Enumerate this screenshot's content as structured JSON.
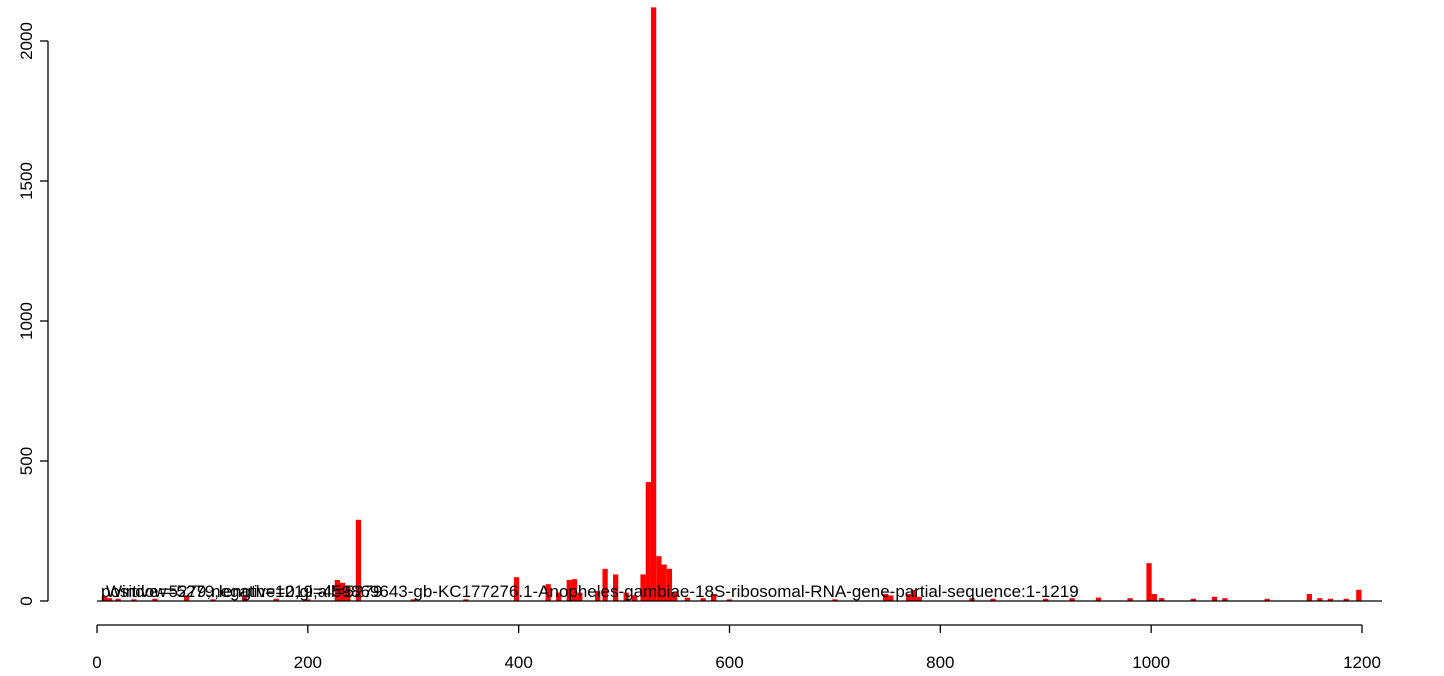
{
  "chart_data": {
    "type": "bar",
    "title": "",
    "xlabel": "",
    "ylabel": "",
    "xlim": [
      0,
      1219
    ],
    "ylim": [
      0,
      2120
    ],
    "x_ticks": [
      "0",
      "200",
      "400",
      "600",
      "800",
      "1000",
      "1200"
    ],
    "y_ticks": [
      "0",
      "500",
      "1000",
      "1500",
      "2000"
    ],
    "bar_width": 5,
    "bars": [
      {
        "x": 7,
        "y": 18
      },
      {
        "x": 12,
        "y": 10
      },
      {
        "x": 20,
        "y": 8
      },
      {
        "x": 35,
        "y": 6
      },
      {
        "x": 55,
        "y": 8
      },
      {
        "x": 85,
        "y": 20
      },
      {
        "x": 110,
        "y": 6
      },
      {
        "x": 140,
        "y": 14
      },
      {
        "x": 170,
        "y": 8
      },
      {
        "x": 200,
        "y": 6
      },
      {
        "x": 228,
        "y": 75
      },
      {
        "x": 233,
        "y": 65
      },
      {
        "x": 238,
        "y": 50
      },
      {
        "x": 248,
        "y": 290
      },
      {
        "x": 300,
        "y": 6
      },
      {
        "x": 350,
        "y": 6
      },
      {
        "x": 398,
        "y": 85
      },
      {
        "x": 428,
        "y": 60
      },
      {
        "x": 438,
        "y": 30
      },
      {
        "x": 448,
        "y": 75
      },
      {
        "x": 453,
        "y": 78
      },
      {
        "x": 458,
        "y": 30
      },
      {
        "x": 475,
        "y": 35
      },
      {
        "x": 482,
        "y": 115
      },
      {
        "x": 492,
        "y": 95
      },
      {
        "x": 502,
        "y": 30
      },
      {
        "x": 510,
        "y": 20
      },
      {
        "x": 518,
        "y": 95
      },
      {
        "x": 523,
        "y": 425
      },
      {
        "x": 528,
        "y": 2120
      },
      {
        "x": 533,
        "y": 160
      },
      {
        "x": 538,
        "y": 130
      },
      {
        "x": 543,
        "y": 115
      },
      {
        "x": 548,
        "y": 30
      },
      {
        "x": 560,
        "y": 12
      },
      {
        "x": 575,
        "y": 10
      },
      {
        "x": 585,
        "y": 25
      },
      {
        "x": 600,
        "y": 6
      },
      {
        "x": 700,
        "y": 6
      },
      {
        "x": 748,
        "y": 25
      },
      {
        "x": 753,
        "y": 20
      },
      {
        "x": 770,
        "y": 25
      },
      {
        "x": 775,
        "y": 40
      },
      {
        "x": 780,
        "y": 15
      },
      {
        "x": 830,
        "y": 10
      },
      {
        "x": 850,
        "y": 8
      },
      {
        "x": 900,
        "y": 8
      },
      {
        "x": 925,
        "y": 10
      },
      {
        "x": 950,
        "y": 12
      },
      {
        "x": 980,
        "y": 10
      },
      {
        "x": 998,
        "y": 135
      },
      {
        "x": 1003,
        "y": 25
      },
      {
        "x": 1010,
        "y": 10
      },
      {
        "x": 1040,
        "y": 8
      },
      {
        "x": 1060,
        "y": 15
      },
      {
        "x": 1070,
        "y": 10
      },
      {
        "x": 1110,
        "y": 8
      },
      {
        "x": 1150,
        "y": 25
      },
      {
        "x": 1160,
        "y": 10
      },
      {
        "x": 1170,
        "y": 8
      },
      {
        "x": 1185,
        "y": 8
      },
      {
        "x": 1197,
        "y": 40
      }
    ],
    "annotations": [
      "Window=5279,length=1219,all=5279",
      "positive=5279,negative=0,gi=459869643-gb-KC177276.1-Anopheles-gambiae-18S-ribosomal-RNA-gene-partial-sequence:1-1219"
    ],
    "bar_color": "#ff0000",
    "grid": false,
    "legend": "none"
  }
}
